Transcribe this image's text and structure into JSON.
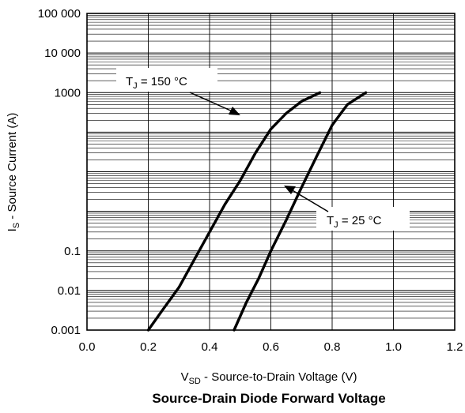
{
  "chart_data": {
    "type": "line",
    "title": "Source-Drain Diode Forward Voltage",
    "xlabel": {
      "main": "V",
      "sub": "SD",
      "rest": " - Source-to-Drain Voltage (V)"
    },
    "ylabel": {
      "main": "I",
      "sub": "S",
      "rest": " - Source Current (A)"
    },
    "xlim": [
      0.0,
      1.2
    ],
    "ylim": [
      0.001,
      100000
    ],
    "yscale": "log",
    "grid": true,
    "xticks": [
      {
        "v": 0.0,
        "label": "0.0"
      },
      {
        "v": 0.2,
        "label": "0.2"
      },
      {
        "v": 0.4,
        "label": "0.4"
      },
      {
        "v": 0.6,
        "label": "0.6"
      },
      {
        "v": 0.8,
        "label": "0.8"
      },
      {
        "v": 1.0,
        "label": "1.0"
      },
      {
        "v": 1.2,
        "label": "1.2"
      }
    ],
    "yticks": [
      {
        "v": 0.001,
        "label": "0.001"
      },
      {
        "v": 0.01,
        "label": "0.01"
      },
      {
        "v": 0.1,
        "label": "0.1"
      },
      {
        "v": 1000,
        "label": "1000"
      },
      {
        "v": 10000,
        "label": "10 000"
      },
      {
        "v": 100000,
        "label": "100 000"
      }
    ],
    "series": [
      {
        "label_main": "T",
        "label_sub": "J",
        "label_rest": " = 150 °C",
        "x": [
          0.2,
          0.25,
          0.3,
          0.35,
          0.4,
          0.45,
          0.5,
          0.55,
          0.6,
          0.65,
          0.7,
          0.76
        ],
        "y": [
          0.001,
          0.0035,
          0.012,
          0.06,
          0.3,
          1.5,
          6,
          30,
          120,
          300,
          600,
          1000
        ]
      },
      {
        "label_main": "T",
        "label_sub": "J",
        "label_rest": " = 25 °C",
        "x": [
          0.48,
          0.52,
          0.56,
          0.6,
          0.65,
          0.7,
          0.75,
          0.8,
          0.85,
          0.91
        ],
        "y": [
          0.001,
          0.005,
          0.02,
          0.1,
          0.6,
          4,
          25,
          150,
          500,
          1000
        ]
      }
    ]
  }
}
